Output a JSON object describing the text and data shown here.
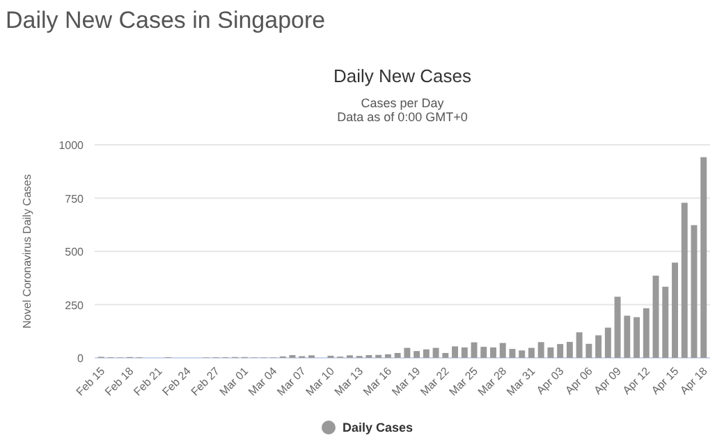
{
  "chart_data": {
    "type": "bar",
    "title": "Daily New Cases in Singapore",
    "subtitle": "Daily New Cases",
    "annotations": [
      "Cases per Day",
      "Data as of 0:00 GMT+0"
    ],
    "ylabel": "Novel Coronavirus Daily Cases",
    "categories": [
      "Feb 15",
      null,
      null,
      "Feb 18",
      null,
      null,
      "Feb 21",
      null,
      null,
      "Feb 24",
      null,
      null,
      "Feb 27",
      null,
      null,
      "Mar 01",
      null,
      null,
      "Mar 04",
      null,
      null,
      "Mar 07",
      null,
      null,
      "Mar 10",
      null,
      null,
      "Mar 13",
      null,
      null,
      "Mar 16",
      null,
      null,
      "Mar 19",
      null,
      null,
      "Mar 22",
      null,
      null,
      "Mar 25",
      null,
      null,
      "Mar 28",
      null,
      null,
      "Mar 31",
      null,
      null,
      "Apr 03",
      null,
      null,
      "Apr 06",
      null,
      null,
      "Apr 09",
      null,
      null,
      "Apr 12",
      null,
      null,
      "Apr 15",
      null,
      null,
      "Apr 18"
    ],
    "series": [
      {
        "name": "Daily Cases",
        "color": "#999999",
        "values": [
          5,
          3,
          2,
          4,
          3,
          null,
          null,
          3,
          null,
          null,
          null,
          2,
          3,
          3,
          4,
          4,
          2,
          2,
          2,
          7,
          13,
          8,
          12,
          0,
          10,
          6,
          12,
          9,
          13,
          14,
          17,
          23,
          47,
          32,
          40,
          47,
          23,
          54,
          49,
          73,
          52,
          49,
          70,
          42,
          35,
          47,
          74,
          49,
          65,
          75,
          120,
          66,
          106,
          142,
          287,
          198,
          191,
          233,
          386,
          334,
          447,
          728,
          623,
          942
        ]
      }
    ],
    "ylim": [
      0,
      1000
    ],
    "yticks": [
      0,
      250,
      500,
      750,
      1000
    ],
    "grid": "y",
    "legend": "bottom"
  }
}
